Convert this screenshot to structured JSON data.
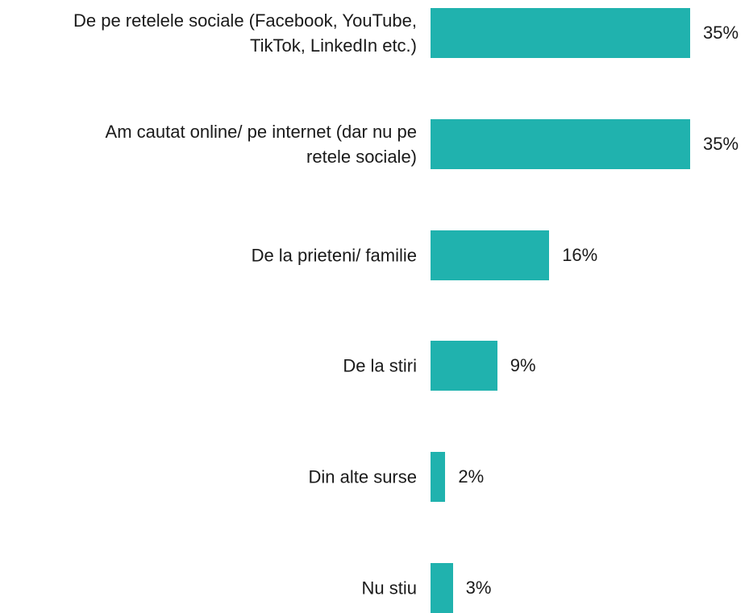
{
  "chart_data": {
    "type": "bar",
    "orientation": "horizontal",
    "categories": [
      "De pe retelele sociale (Facebook, YouTube, TikTok, LinkedIn etc.)",
      "Am cautat online/ pe internet (dar nu pe retele sociale)",
      "De la prieteni/ familie",
      "De la stiri",
      "Din alte surse",
      "Nu stiu"
    ],
    "values": [
      35,
      35,
      16,
      9,
      2,
      3
    ],
    "value_labels": [
      "35%",
      "35%",
      "16%",
      "9%",
      "2%",
      "3%"
    ],
    "color": "#20b2ae"
  }
}
